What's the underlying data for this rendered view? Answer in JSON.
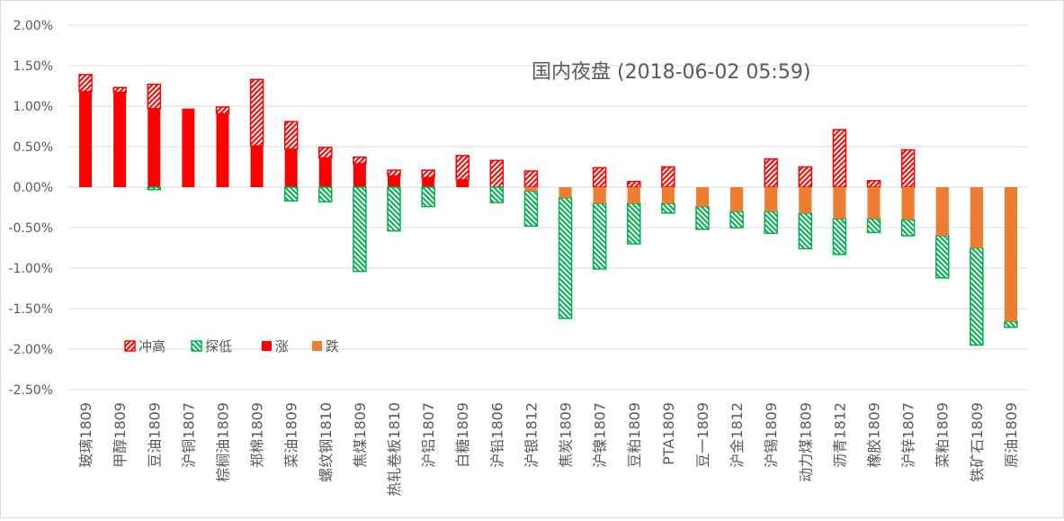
{
  "chart_data": {
    "type": "bar",
    "title": "国内夜盘 (2018-06-02 05:59)",
    "xlabel": "",
    "ylabel": "",
    "ylim": [
      -2.5,
      2.0
    ],
    "yticks": [
      2.0,
      1.5,
      1.0,
      0.5,
      0.0,
      -0.5,
      -1.0,
      -1.5,
      -2.0,
      -2.5
    ],
    "ytick_labels": [
      "2.00%",
      "1.50%",
      "1.00%",
      "0.50%",
      "0.00%",
      "-0.50%",
      "-1.00%",
      "-1.50%",
      "-2.00%",
      "-2.50%"
    ],
    "grid": true,
    "legend": {
      "placement": "bottom-left",
      "entries": [
        "冲高",
        "探低",
        "涨",
        "跌"
      ]
    },
    "colors": {
      "high": "#ff0000",
      "low": "#00b050",
      "up": "#ff0000",
      "down": "#ed7d31",
      "grid": "#d9d9d9",
      "text": "#595959"
    },
    "categories": [
      "玻璃1809",
      "甲醇1809",
      "豆油1809",
      "沪铜1807",
      "棕榈油1809",
      "郑棉1809",
      "菜油1809",
      "螺纹钢1810",
      "焦煤1809",
      "热轧卷板1810",
      "沪铝1807",
      "白糖1809",
      "沪铅1806",
      "沪银1812",
      "焦炭1809",
      "沪镍1807",
      "豆粕1809",
      "PTA1809",
      "豆一1809",
      "沪金1812",
      "沪锡1809",
      "动力煤1809",
      "沥青1812",
      "橡胶1809",
      "沪锌1807",
      "菜粕1809",
      "铁矿石1809",
      "原油1809"
    ],
    "series": [
      {
        "name": "冲高",
        "values": [
          1.39,
          1.23,
          1.27,
          0.97,
          0.99,
          1.33,
          0.81,
          0.49,
          0.37,
          0.21,
          0.21,
          0.39,
          0.33,
          0.2,
          0.0,
          0.24,
          0.07,
          0.25,
          0.0,
          0.0,
          0.35,
          0.25,
          0.71,
          0.08,
          0.46,
          0.0,
          0.0,
          0.0
        ]
      },
      {
        "name": "探低",
        "values": [
          0.0,
          0.0,
          -0.03,
          0.0,
          0.0,
          0.0,
          -0.17,
          -0.18,
          -1.04,
          -0.54,
          -0.24,
          0.0,
          -0.19,
          -0.48,
          -1.62,
          -1.01,
          -0.7,
          -0.32,
          -0.52,
          -0.5,
          -0.57,
          -0.76,
          -0.83,
          -0.56,
          -0.6,
          -1.12,
          -1.95,
          -1.73
        ]
      },
      {
        "name": "涨跌",
        "values": [
          1.18,
          1.17,
          0.97,
          0.97,
          0.91,
          0.51,
          0.47,
          0.36,
          0.29,
          0.14,
          0.12,
          0.09,
          0.0,
          -0.05,
          -0.13,
          -0.2,
          -0.2,
          -0.2,
          -0.24,
          -0.3,
          -0.3,
          -0.32,
          -0.39,
          -0.39,
          -0.4,
          -0.6,
          -0.75,
          -1.66
        ]
      }
    ]
  }
}
